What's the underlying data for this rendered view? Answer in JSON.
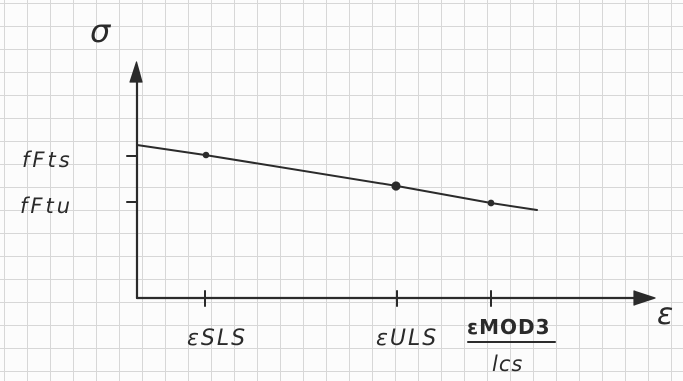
{
  "diagram": {
    "y_axis_label": "σ",
    "x_axis_label": "ε",
    "y_ticks": [
      {
        "label": "fFts"
      },
      {
        "label": "fFtu"
      }
    ],
    "x_ticks": [
      {
        "label": "εSLS"
      },
      {
        "label": "εULS"
      },
      {
        "label_numerator": "εMOD3",
        "label_denominator": "lcs"
      }
    ],
    "points": [
      {
        "label": "εSLS"
      },
      {
        "label": "εULS"
      },
      {
        "label": "εMOD3 / lcs"
      }
    ],
    "colors": {
      "ink": "#2b2b2b",
      "grid": "#d7d7d7",
      "paper": "#fcfcfc"
    }
  }
}
